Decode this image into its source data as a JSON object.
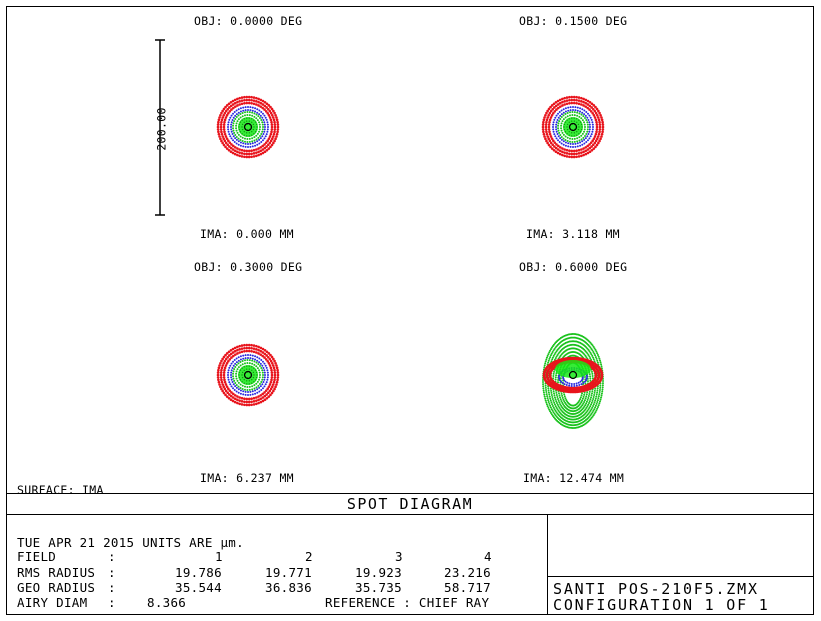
{
  "title": "SPOT DIAGRAM",
  "surface_label": "SURFACE: IMA",
  "scale_bar_label": "200.00",
  "fields": [
    {
      "obj": "OBJ: 0.0000 DEG",
      "ima": "IMA: 0.000 MM"
    },
    {
      "obj": "OBJ: 0.1500 DEG",
      "ima": "IMA: 3.118 MM"
    },
    {
      "obj": "OBJ: 0.3000 DEG",
      "ima": "IMA: 6.237 MM"
    },
    {
      "obj": "OBJ: 0.6000 DEG",
      "ima": "IMA: 12.474 MM"
    }
  ],
  "info": {
    "date_units": "TUE APR 21 2015  UNITS ARE µm.",
    "field_label": "FIELD",
    "field_values": [
      "1",
      "2",
      "3",
      "4"
    ],
    "rms_label": "RMS RADIUS",
    "rms_values": [
      "19.786",
      "19.771",
      "19.923",
      "23.216"
    ],
    "geo_label": "GEO RADIUS",
    "geo_values": [
      "35.544",
      "36.836",
      "35.735",
      "58.717"
    ],
    "airy_label": "AIRY DIAM",
    "airy_value": "8.366",
    "reference": "REFERENCE  : CHIEF RAY",
    "colon": ":"
  },
  "filename": "SANTI POS-210F5.ZMX",
  "configuration": "CONFIGURATION  1 OF  1",
  "colors": {
    "outer": "#e8141c",
    "middle": "#19c21c",
    "inner": "#2a2adf",
    "core": "#14e814"
  }
}
